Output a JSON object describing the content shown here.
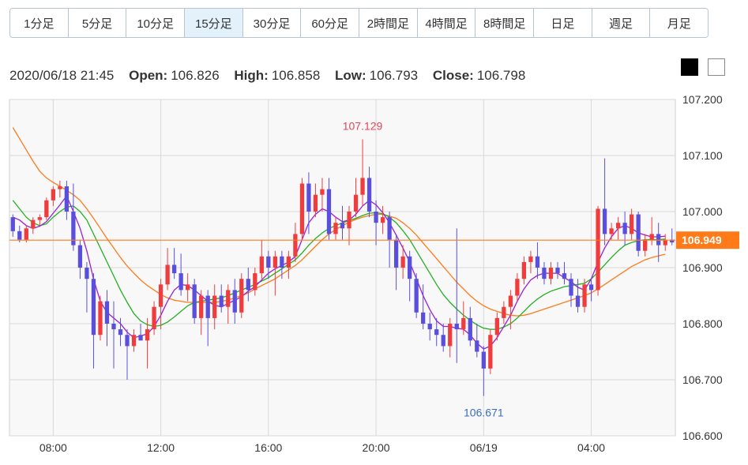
{
  "tabs": [
    {
      "label": "1分足",
      "active": false
    },
    {
      "label": "5分足",
      "active": false
    },
    {
      "label": "10分足",
      "active": false
    },
    {
      "label": "15分足",
      "active": true
    },
    {
      "label": "30分足",
      "active": false
    },
    {
      "label": "60分足",
      "active": false
    },
    {
      "label": "2時間足",
      "active": false
    },
    {
      "label": "4時間足",
      "active": false
    },
    {
      "label": "8時間足",
      "active": false
    },
    {
      "label": "日足",
      "active": false
    },
    {
      "label": "週足",
      "active": false
    },
    {
      "label": "月足",
      "active": false
    }
  ],
  "ohlc": {
    "datetime": "2020/06/18 21:45",
    "open_label": "Open:",
    "open": "106.826",
    "high_label": "High:",
    "high": "106.858",
    "low_label": "Low:",
    "low": "106.793",
    "close_label": "Close:",
    "close": "106.798"
  },
  "theme_buttons": [
    "dark",
    "light"
  ],
  "colors": {
    "up": "#f03c3c",
    "down": "#5a4fdc",
    "ma_short": "#9b20d4",
    "ma_mid": "#22b022",
    "ma_long": "#ff7b1a",
    "current_price_line": "#ff7b1a",
    "grid": "#d8d8d8",
    "plot_bg": "#f8f8f8",
    "high_label": "#e8455a",
    "low_label": "#3a6fc0"
  },
  "chart_data": {
    "type": "candlestick",
    "y_ticks": [
      "107.200",
      "107.100",
      "107.000",
      "106.900",
      "106.800",
      "106.700",
      "106.600"
    ],
    "ylim": [
      106.6,
      107.2
    ],
    "x_ticks": [
      {
        "label": "08:00",
        "index": 6
      },
      {
        "label": "12:00",
        "index": 22
      },
      {
        "label": "16:00",
        "index": 38
      },
      {
        "label": "20:00",
        "index": 54
      },
      {
        "label": "06/19",
        "index": 70
      },
      {
        "label": "04:00",
        "index": 86
      }
    ],
    "current_price": "106.949",
    "high_marker": {
      "label": "107.129",
      "index": 52
    },
    "low_marker": {
      "label": "106.671",
      "index": 70
    },
    "candles": [
      [
        106.99,
        106.995,
        106.955,
        106.965
      ],
      [
        106.965,
        106.975,
        106.945,
        106.95
      ],
      [
        106.95,
        106.975,
        106.945,
        106.97
      ],
      [
        106.97,
        106.99,
        106.96,
        106.985
      ],
      [
        106.985,
        106.995,
        106.975,
        106.99
      ],
      [
        106.99,
        107.025,
        106.985,
        107.02
      ],
      [
        107.02,
        107.045,
        107.01,
        107.04
      ],
      [
        107.04,
        107.055,
        107.025,
        107.045
      ],
      [
        107.045,
        107.055,
        106.985,
        107.0
      ],
      [
        107.0,
        107.05,
        106.93,
        106.94
      ],
      [
        106.94,
        106.95,
        106.88,
        106.9
      ],
      [
        106.9,
        106.91,
        106.82,
        106.88
      ],
      [
        106.88,
        106.89,
        106.72,
        106.78
      ],
      [
        106.78,
        106.85,
        106.77,
        106.84
      ],
      [
        106.84,
        106.86,
        106.76,
        106.8
      ],
      [
        106.8,
        106.84,
        106.72,
        106.79
      ],
      [
        106.79,
        106.81,
        106.76,
        106.78
      ],
      [
        106.78,
        106.79,
        106.7,
        106.76
      ],
      [
        106.76,
        106.79,
        106.75,
        106.78
      ],
      [
        106.78,
        106.8,
        106.77,
        106.77
      ],
      [
        106.77,
        106.81,
        106.72,
        106.79
      ],
      [
        106.79,
        106.84,
        106.78,
        106.83
      ],
      [
        106.83,
        106.88,
        106.79,
        106.87
      ],
      [
        106.87,
        106.935,
        106.86,
        106.905
      ],
      [
        106.905,
        106.935,
        106.88,
        106.89
      ],
      [
        106.89,
        106.925,
        106.85,
        106.86
      ],
      [
        106.86,
        106.89,
        106.84,
        106.87
      ],
      [
        106.87,
        106.88,
        106.8,
        106.81
      ],
      [
        106.81,
        106.86,
        106.78,
        106.85
      ],
      [
        106.85,
        106.86,
        106.76,
        106.81
      ],
      [
        106.81,
        106.87,
        106.79,
        106.85
      ],
      [
        106.85,
        106.87,
        106.82,
        106.83
      ],
      [
        106.83,
        106.87,
        106.8,
        106.86
      ],
      [
        106.86,
        106.88,
        106.8,
        106.82
      ],
      [
        106.82,
        106.89,
        106.81,
        106.88
      ],
      [
        106.88,
        106.9,
        106.84,
        106.86
      ],
      [
        106.86,
        106.9,
        106.85,
        106.89
      ],
      [
        106.89,
        106.95,
        106.88,
        106.92
      ],
      [
        106.92,
        106.93,
        106.88,
        106.9
      ],
      [
        106.9,
        106.93,
        106.85,
        106.92
      ],
      [
        106.92,
        106.93,
        106.88,
        106.9
      ],
      [
        106.9,
        106.93,
        106.88,
        106.92
      ],
      [
        106.92,
        106.98,
        106.91,
        106.96
      ],
      [
        106.96,
        107.06,
        106.95,
        107.05
      ],
      [
        107.05,
        107.07,
        106.96,
        107.0
      ],
      [
        107.0,
        107.05,
        106.99,
        107.03
      ],
      [
        107.03,
        107.06,
        107.0,
        107.04
      ],
      [
        107.04,
        107.06,
        106.95,
        106.96
      ],
      [
        106.96,
        106.99,
        106.95,
        106.98
      ],
      [
        106.98,
        107.01,
        106.95,
        106.97
      ],
      [
        106.97,
        107.01,
        106.94,
        107.0
      ],
      [
        107.0,
        107.06,
        106.99,
        107.03
      ],
      [
        107.03,
        107.129,
        107.01,
        107.06
      ],
      [
        107.06,
        107.08,
        106.99,
        107.0
      ],
      [
        107.0,
        107.02,
        106.94,
        106.98
      ],
      [
        106.98,
        107.01,
        106.96,
        106.99
      ],
      [
        106.99,
        107.0,
        106.9,
        106.95
      ],
      [
        106.95,
        106.96,
        106.86,
        106.9
      ],
      [
        106.9,
        106.94,
        106.88,
        106.92
      ],
      [
        106.92,
        106.93,
        106.84,
        106.88
      ],
      [
        106.88,
        106.89,
        106.81,
        106.82
      ],
      [
        106.82,
        106.87,
        106.79,
        106.8
      ],
      [
        106.8,
        106.82,
        106.77,
        106.79
      ],
      [
        106.79,
        106.81,
        106.76,
        106.78
      ],
      [
        106.78,
        106.8,
        106.75,
        106.76
      ],
      [
        106.76,
        106.81,
        106.74,
        106.8
      ],
      [
        106.8,
        106.97,
        106.73,
        106.79
      ],
      [
        106.79,
        106.84,
        106.78,
        106.81
      ],
      [
        106.81,
        106.83,
        106.76,
        106.77
      ],
      [
        106.77,
        106.8,
        106.74,
        106.75
      ],
      [
        106.75,
        106.76,
        106.671,
        106.72
      ],
      [
        106.72,
        106.79,
        106.71,
        106.78
      ],
      [
        106.78,
        106.82,
        106.77,
        106.81
      ],
      [
        106.81,
        106.84,
        106.8,
        106.83
      ],
      [
        106.83,
        106.86,
        106.79,
        106.85
      ],
      [
        106.85,
        106.89,
        106.84,
        106.88
      ],
      [
        106.88,
        106.92,
        106.87,
        106.91
      ],
      [
        106.91,
        106.93,
        106.89,
        106.92
      ],
      [
        106.92,
        106.945,
        106.88,
        106.9
      ],
      [
        106.9,
        106.91,
        106.87,
        106.88
      ],
      [
        106.88,
        106.91,
        106.87,
        106.9
      ],
      [
        106.9,
        106.91,
        106.88,
        106.89
      ],
      [
        106.89,
        106.91,
        106.87,
        106.88
      ],
      [
        106.88,
        106.89,
        106.83,
        106.85
      ],
      [
        106.85,
        106.88,
        106.82,
        106.83
      ],
      [
        106.83,
        106.88,
        106.82,
        106.87
      ],
      [
        106.87,
        106.88,
        106.84,
        106.86
      ],
      [
        106.86,
        107.01,
        106.85,
        107.005
      ],
      [
        107.005,
        107.095,
        106.94,
        106.96
      ],
      [
        106.96,
        106.98,
        106.95,
        106.97
      ],
      [
        106.97,
        106.99,
        106.95,
        106.98
      ],
      [
        106.98,
        107.0,
        106.94,
        106.96
      ],
      [
        106.96,
        107.005,
        106.95,
        106.995
      ],
      [
        106.995,
        107.0,
        106.92,
        106.93
      ],
      [
        106.93,
        106.96,
        106.92,
        106.95
      ],
      [
        106.95,
        106.99,
        106.94,
        106.96
      ],
      [
        106.96,
        106.98,
        106.91,
        106.94
      ],
      [
        106.94,
        106.96,
        106.93,
        106.95
      ],
      [
        106.95,
        106.97,
        106.94,
        106.945
      ]
    ],
    "ma_short": [
      106.99,
      106.985,
      106.975,
      106.97,
      106.974,
      106.982,
      106.997,
      107.012,
      107.028,
      107.0,
      106.97,
      106.93,
      106.88,
      106.84,
      106.82,
      106.81,
      106.8,
      106.785,
      106.775,
      106.778,
      106.782,
      106.795,
      106.815,
      106.84,
      106.86,
      106.87,
      106.868,
      106.86,
      106.85,
      106.84,
      106.833,
      106.83,
      106.836,
      106.842,
      106.848,
      106.858,
      106.866,
      106.878,
      106.89,
      106.898,
      106.904,
      106.91,
      106.92,
      106.95,
      106.98,
      106.995,
      107.005,
      107.0,
      106.99,
      106.982,
      106.985,
      106.995,
      107.01,
      107.02,
      107.012,
      106.998,
      106.98,
      106.958,
      106.935,
      106.91,
      106.88,
      106.85,
      106.825,
      106.805,
      106.795,
      106.795,
      106.792,
      106.79,
      106.78,
      106.765,
      106.755,
      106.76,
      106.775,
      106.795,
      106.815,
      106.84,
      106.862,
      106.878,
      106.886,
      106.89,
      106.89,
      106.89,
      106.882,
      106.875,
      106.865,
      106.86,
      106.88,
      106.91,
      106.935,
      106.955,
      106.97,
      106.975,
      106.97,
      106.962,
      106.958,
      106.955,
      106.955,
      106.956
    ],
    "ma_mid": [
      107.02,
      107.005,
      106.99,
      106.98,
      106.975,
      106.978,
      106.99,
      107.0,
      107.008,
      107.01,
      107.0,
      106.985,
      106.96,
      106.935,
      106.91,
      106.885,
      106.86,
      106.838,
      106.818,
      106.805,
      106.798,
      106.795,
      106.797,
      106.803,
      106.812,
      106.822,
      106.832,
      106.838,
      106.84,
      106.842,
      106.844,
      106.846,
      106.85,
      106.855,
      106.86,
      106.865,
      106.87,
      106.876,
      106.882,
      106.89,
      106.898,
      106.906,
      106.914,
      106.926,
      106.94,
      106.952,
      106.962,
      106.97,
      106.975,
      106.98,
      106.984,
      106.988,
      106.993,
      106.997,
      106.998,
      106.996,
      106.99,
      106.98,
      106.966,
      106.95,
      106.93,
      106.91,
      106.89,
      106.87,
      106.852,
      106.838,
      106.826,
      106.815,
      106.806,
      106.798,
      106.792,
      106.79,
      106.79,
      106.794,
      106.8,
      106.81,
      106.822,
      106.834,
      106.844,
      106.852,
      106.858,
      106.862,
      106.866,
      106.868,
      106.87,
      106.872,
      106.88,
      106.892,
      106.905,
      106.918,
      106.93,
      106.94,
      106.945,
      106.948,
      106.95,
      106.95,
      106.95,
      106.951
    ],
    "ma_long": [
      107.15,
      107.13,
      107.11,
      107.09,
      107.072,
      107.06,
      107.052,
      107.045,
      107.038,
      107.03,
      107.02,
      107.005,
      106.988,
      106.97,
      106.952,
      106.935,
      106.918,
      106.903,
      106.89,
      106.878,
      106.868,
      106.86,
      106.852,
      106.846,
      106.842,
      106.84,
      106.838,
      106.838,
      106.838,
      106.838,
      106.838,
      106.84,
      106.842,
      106.846,
      106.85,
      106.855,
      106.862,
      106.868,
      106.874,
      106.88,
      106.888,
      106.896,
      106.904,
      106.914,
      106.926,
      106.938,
      106.95,
      106.96,
      106.968,
      106.975,
      106.981,
      106.986,
      106.99,
      106.993,
      106.995,
      106.995,
      106.992,
      106.988,
      106.98,
      106.97,
      106.958,
      106.944,
      106.93,
      106.916,
      106.902,
      106.888,
      106.874,
      106.862,
      106.85,
      106.84,
      106.832,
      106.826,
      106.822,
      106.818,
      106.815,
      106.814,
      106.815,
      106.818,
      106.822,
      106.826,
      106.83,
      106.834,
      106.838,
      106.842,
      106.846,
      106.85,
      106.855,
      106.862,
      106.87,
      106.878,
      106.886,
      106.894,
      106.902,
      106.908,
      106.914,
      106.918,
      106.921,
      106.924
    ]
  }
}
